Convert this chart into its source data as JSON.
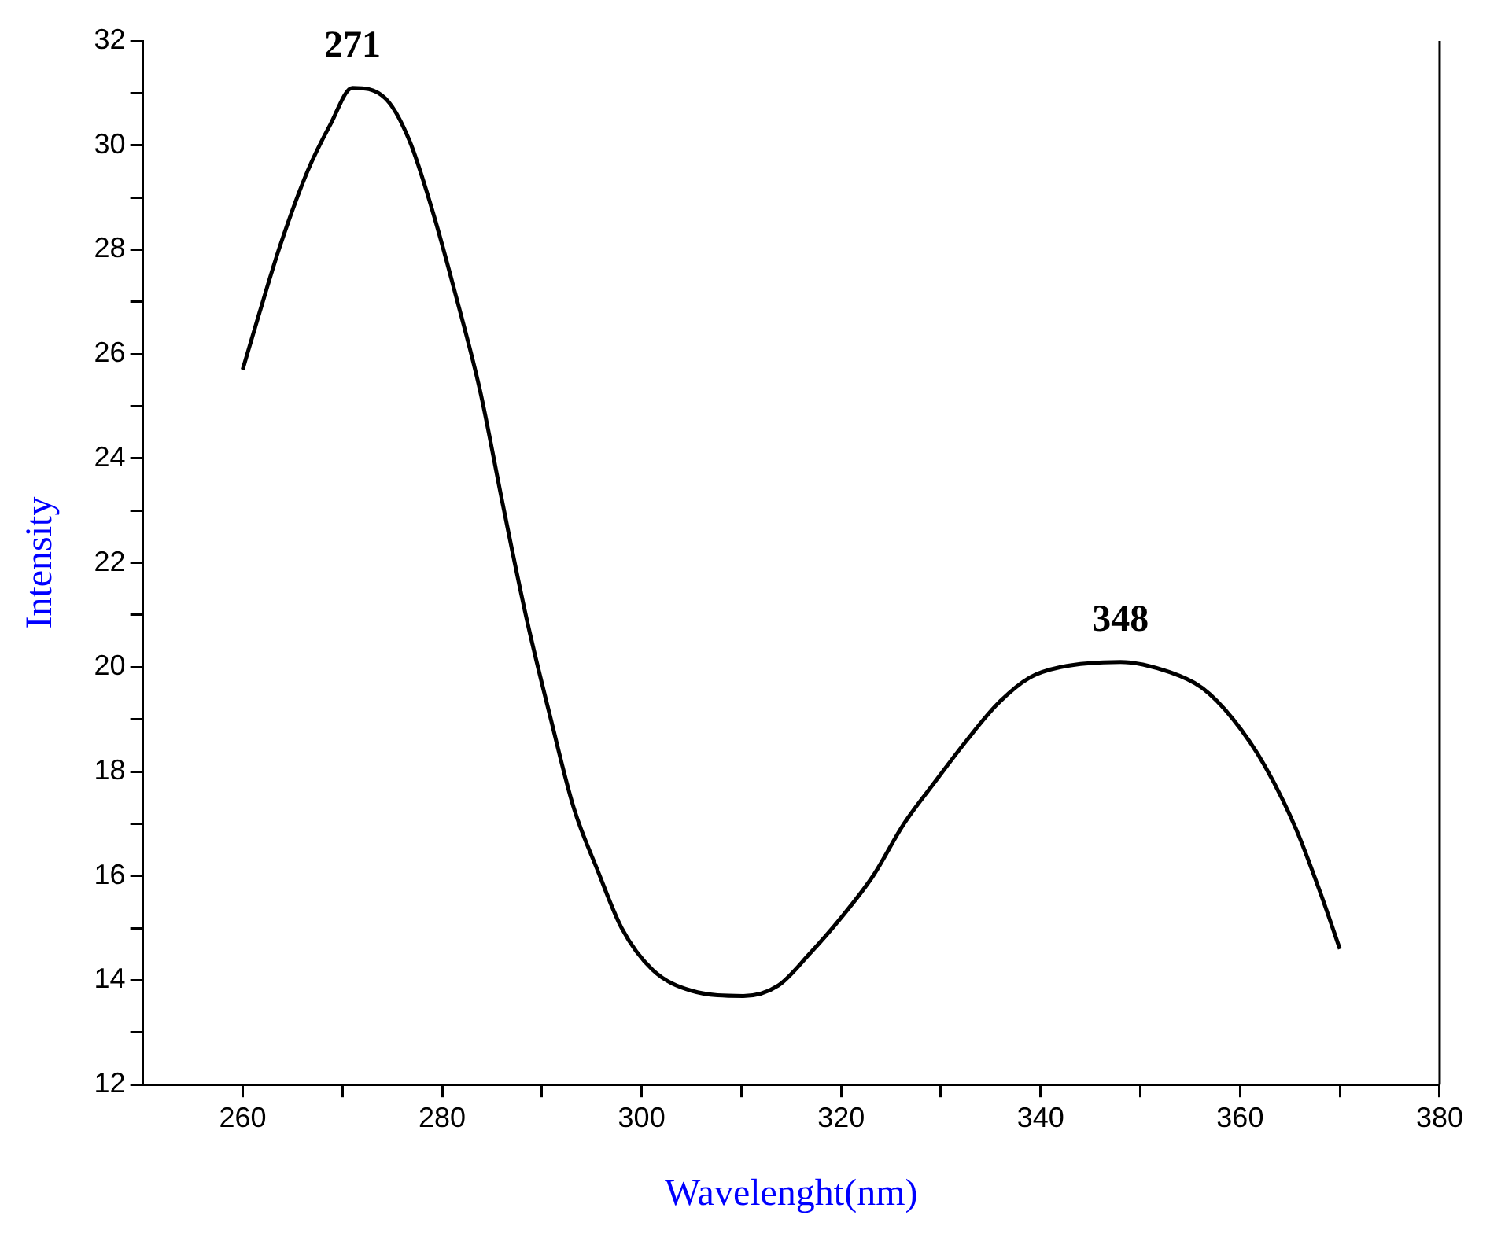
{
  "chart_data": {
    "type": "line",
    "xlabel": "Wavelenght(nm)",
    "ylabel": "Intensity",
    "x": [
      260,
      261.7,
      263.8,
      266.5,
      268.8,
      271,
      274.3,
      276.7,
      279.1,
      281.4,
      283.8,
      286.1,
      288.5,
      290.9,
      293.2,
      295.6,
      298,
      301.1,
      305,
      310.2,
      313.7,
      316.8,
      320,
      323.2,
      326.3,
      329.4,
      332.6,
      335.7,
      338.9,
      342,
      348,
      353,
      356.2,
      359.3,
      362.5,
      365.6,
      368,
      370
    ],
    "series": [
      {
        "color": "#000000",
        "values": [
          25.7,
          26.8,
          28.1,
          29.5,
          30.4,
          31.1,
          30.9,
          30.1,
          28.7,
          27.1,
          25.3,
          23.1,
          20.9,
          19.0,
          17.3,
          16.1,
          15.0,
          14.2,
          13.8,
          13.7,
          13.9,
          14.5,
          15.2,
          16.0,
          17.0,
          17.8,
          18.6,
          19.3,
          19.8,
          20.0,
          20.1,
          19.9,
          19.6,
          19.0,
          18.1,
          16.9,
          15.7,
          14.6
        ]
      }
    ],
    "xlim": [
      250,
      380
    ],
    "xticks": [
      260,
      {
        "value": 270,
        "label": null
      },
      280,
      {
        "value": 290,
        "label": null
      },
      300,
      {
        "value": 310,
        "label": null
      },
      320,
      {
        "value": 330,
        "label": null
      },
      340,
      {
        "value": 350,
        "label": null
      },
      360,
      {
        "value": 370,
        "label": null
      },
      380
    ],
    "ylim": [
      12,
      32
    ],
    "yticks": [
      12,
      {
        "value": 13,
        "label": null
      },
      14,
      {
        "value": 15,
        "label": null
      },
      16,
      {
        "value": 17,
        "label": null
      },
      18,
      {
        "value": 19,
        "label": null
      },
      20,
      {
        "value": 21,
        "label": null
      },
      22,
      {
        "value": 23,
        "label": null
      },
      24,
      {
        "value": 25,
        "label": null
      },
      26,
      {
        "value": 27,
        "label": null
      },
      28,
      {
        "value": 29,
        "label": null
      },
      30,
      {
        "value": 31,
        "label": null
      },
      32
    ],
    "annotations": [
      {
        "text": "271",
        "x": 271,
        "y": 31.1
      },
      {
        "text": "348",
        "x": 348,
        "y": 20.1
      }
    ],
    "grid": false,
    "legend": false,
    "marker": "none",
    "line_style": "solid"
  }
}
